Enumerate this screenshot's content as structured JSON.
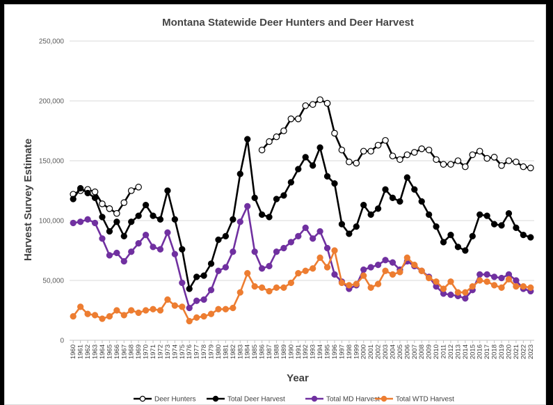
{
  "chart_data": {
    "type": "line",
    "title": "Montana Statewide Deer Hunters and Deer Harvest",
    "xlabel": "Year",
    "ylabel": "Harvest Survey Estimate",
    "ylim": [
      0,
      250000
    ],
    "yticks": [
      0,
      50000,
      100000,
      150000,
      200000,
      250000
    ],
    "ytick_labels": [
      "0",
      "50,000",
      "100,000",
      "150,000",
      "200,000",
      "250,000"
    ],
    "grid": true,
    "legend_position": "bottom",
    "categories": [
      "1960",
      "1961",
      "1962",
      "1963",
      "1964",
      "1965",
      "1966",
      "1967",
      "1968",
      "1969",
      "1970",
      "1971",
      "1972",
      "1973",
      "1974",
      "1975",
      "1976",
      "1977",
      "1978",
      "1979",
      "1980",
      "1981",
      "1982",
      "1983",
      "1984",
      "1985",
      "1986",
      "1987",
      "1988",
      "1989",
      "1990",
      "1991",
      "1992",
      "1993",
      "1994",
      "1995",
      "1996",
      "1997",
      "1998",
      "1999",
      "2000",
      "2001",
      "2002",
      "2003",
      "2004",
      "2005",
      "2006",
      "2007",
      "2008",
      "2009",
      "2010",
      "2011",
      "2012",
      "2013",
      "2014",
      "2015",
      "2016",
      "2017",
      "2018",
      "2019",
      "2020",
      "2021",
      "2022",
      "2023"
    ],
    "series": [
      {
        "name": "Deer Hunters",
        "color": "#000000",
        "marker": "open",
        "values": [
          122000,
          125000,
          126000,
          124000,
          114000,
          110000,
          106000,
          115000,
          125000,
          128000,
          null,
          null,
          null,
          null,
          null,
          null,
          null,
          null,
          null,
          null,
          null,
          null,
          null,
          null,
          null,
          null,
          159000,
          166000,
          170000,
          175000,
          185000,
          185000,
          196000,
          197000,
          201000,
          198000,
          173000,
          159000,
          149000,
          148000,
          158000,
          158000,
          163000,
          167000,
          154000,
          151000,
          155000,
          157000,
          160000,
          159000,
          151000,
          147000,
          147000,
          150000,
          145000,
          155000,
          158000,
          152000,
          153000,
          146000,
          150000,
          149000,
          145000,
          144000
        ]
      },
      {
        "name": "Total Deer Harvest",
        "color": "#000000",
        "marker": "filled",
        "values": [
          118000,
          127000,
          123000,
          119000,
          103000,
          91000,
          99000,
          87000,
          99000,
          104000,
          113000,
          104000,
          101000,
          125000,
          101000,
          76000,
          43000,
          53000,
          54000,
          64000,
          84000,
          87000,
          101000,
          139000,
          168000,
          119000,
          105000,
          103000,
          118000,
          121000,
          132000,
          143000,
          153000,
          146000,
          161000,
          137000,
          131000,
          97000,
          89000,
          95000,
          113000,
          105000,
          110000,
          126000,
          119000,
          116000,
          136000,
          126000,
          116000,
          105000,
          95000,
          82000,
          88000,
          78000,
          75000,
          87000,
          105000,
          104000,
          97000,
          96000,
          106000,
          94000,
          88000,
          86000
        ]
      },
      {
        "name": "Total MD Harvest",
        "color": "#7030a0",
        "marker": "filled",
        "values": [
          98000,
          99000,
          101000,
          98000,
          85000,
          71000,
          73000,
          66000,
          74000,
          81000,
          88000,
          78000,
          76000,
          90000,
          72000,
          48000,
          27000,
          33000,
          34000,
          42000,
          58000,
          61000,
          74000,
          99000,
          112000,
          74000,
          60000,
          62000,
          74000,
          77000,
          82000,
          87000,
          94000,
          85000,
          91000,
          77000,
          55000,
          49000,
          43000,
          46000,
          59000,
          61000,
          63000,
          67000,
          65000,
          59000,
          66000,
          62000,
          58000,
          53000,
          45000,
          39000,
          38000,
          37000,
          35000,
          42000,
          55000,
          55000,
          53000,
          52000,
          55000,
          50000,
          43000,
          41000
        ]
      },
      {
        "name": "Total WTD Harvest",
        "color": "#ed7d31",
        "marker": "filled",
        "values": [
          20000,
          28000,
          22000,
          21000,
          18000,
          20000,
          25000,
          21000,
          25000,
          23000,
          25000,
          26000,
          25000,
          34000,
          29000,
          28000,
          16000,
          19000,
          20000,
          22000,
          26000,
          26000,
          27000,
          40000,
          56000,
          45000,
          44000,
          41000,
          44000,
          44000,
          48000,
          56000,
          58000,
          60000,
          69000,
          61000,
          75000,
          48000,
          46000,
          47000,
          54000,
          44000,
          47000,
          58000,
          55000,
          57000,
          69000,
          63000,
          58000,
          52000,
          49000,
          43000,
          49000,
          40000,
          40000,
          45000,
          50000,
          49000,
          46000,
          44000,
          51000,
          45000,
          45000,
          44000
        ]
      }
    ]
  }
}
